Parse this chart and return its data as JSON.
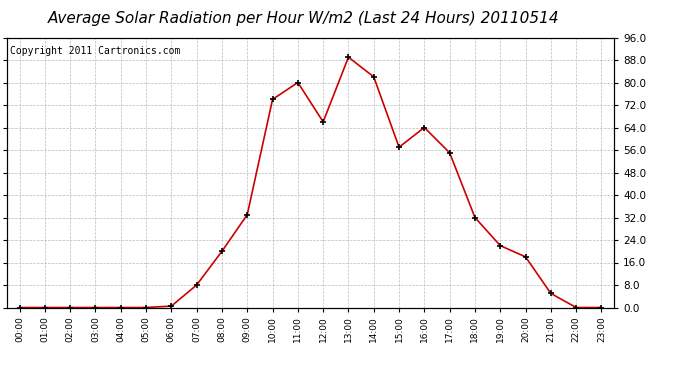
{
  "title": "Average Solar Radiation per Hour W/m2 (Last 24 Hours) 20110514",
  "copyright": "Copyright 2011 Cartronics.com",
  "hours": [
    "00:00",
    "01:00",
    "02:00",
    "03:00",
    "04:00",
    "05:00",
    "06:00",
    "07:00",
    "08:00",
    "09:00",
    "10:00",
    "11:00",
    "12:00",
    "13:00",
    "14:00",
    "15:00",
    "16:00",
    "17:00",
    "18:00",
    "19:00",
    "20:00",
    "21:00",
    "22:00",
    "23:00"
  ],
  "values": [
    0,
    0,
    0,
    0,
    0,
    0,
    0.5,
    8,
    20,
    33,
    74,
    80,
    66,
    89,
    82,
    57,
    64,
    55,
    32,
    22,
    18,
    5,
    0,
    0
  ],
  "line_color": "#cc0000",
  "marker": "+",
  "marker_color": "#000000",
  "marker_size": 5,
  "background_color": "#ffffff",
  "plot_bg_color": "#ffffff",
  "grid_color": "#bbbbbb",
  "ylim": [
    0,
    96
  ],
  "yticks": [
    0.0,
    8.0,
    16.0,
    24.0,
    32.0,
    40.0,
    48.0,
    56.0,
    64.0,
    72.0,
    80.0,
    88.0,
    96.0
  ],
  "title_fontsize": 11,
  "copyright_fontsize": 7
}
